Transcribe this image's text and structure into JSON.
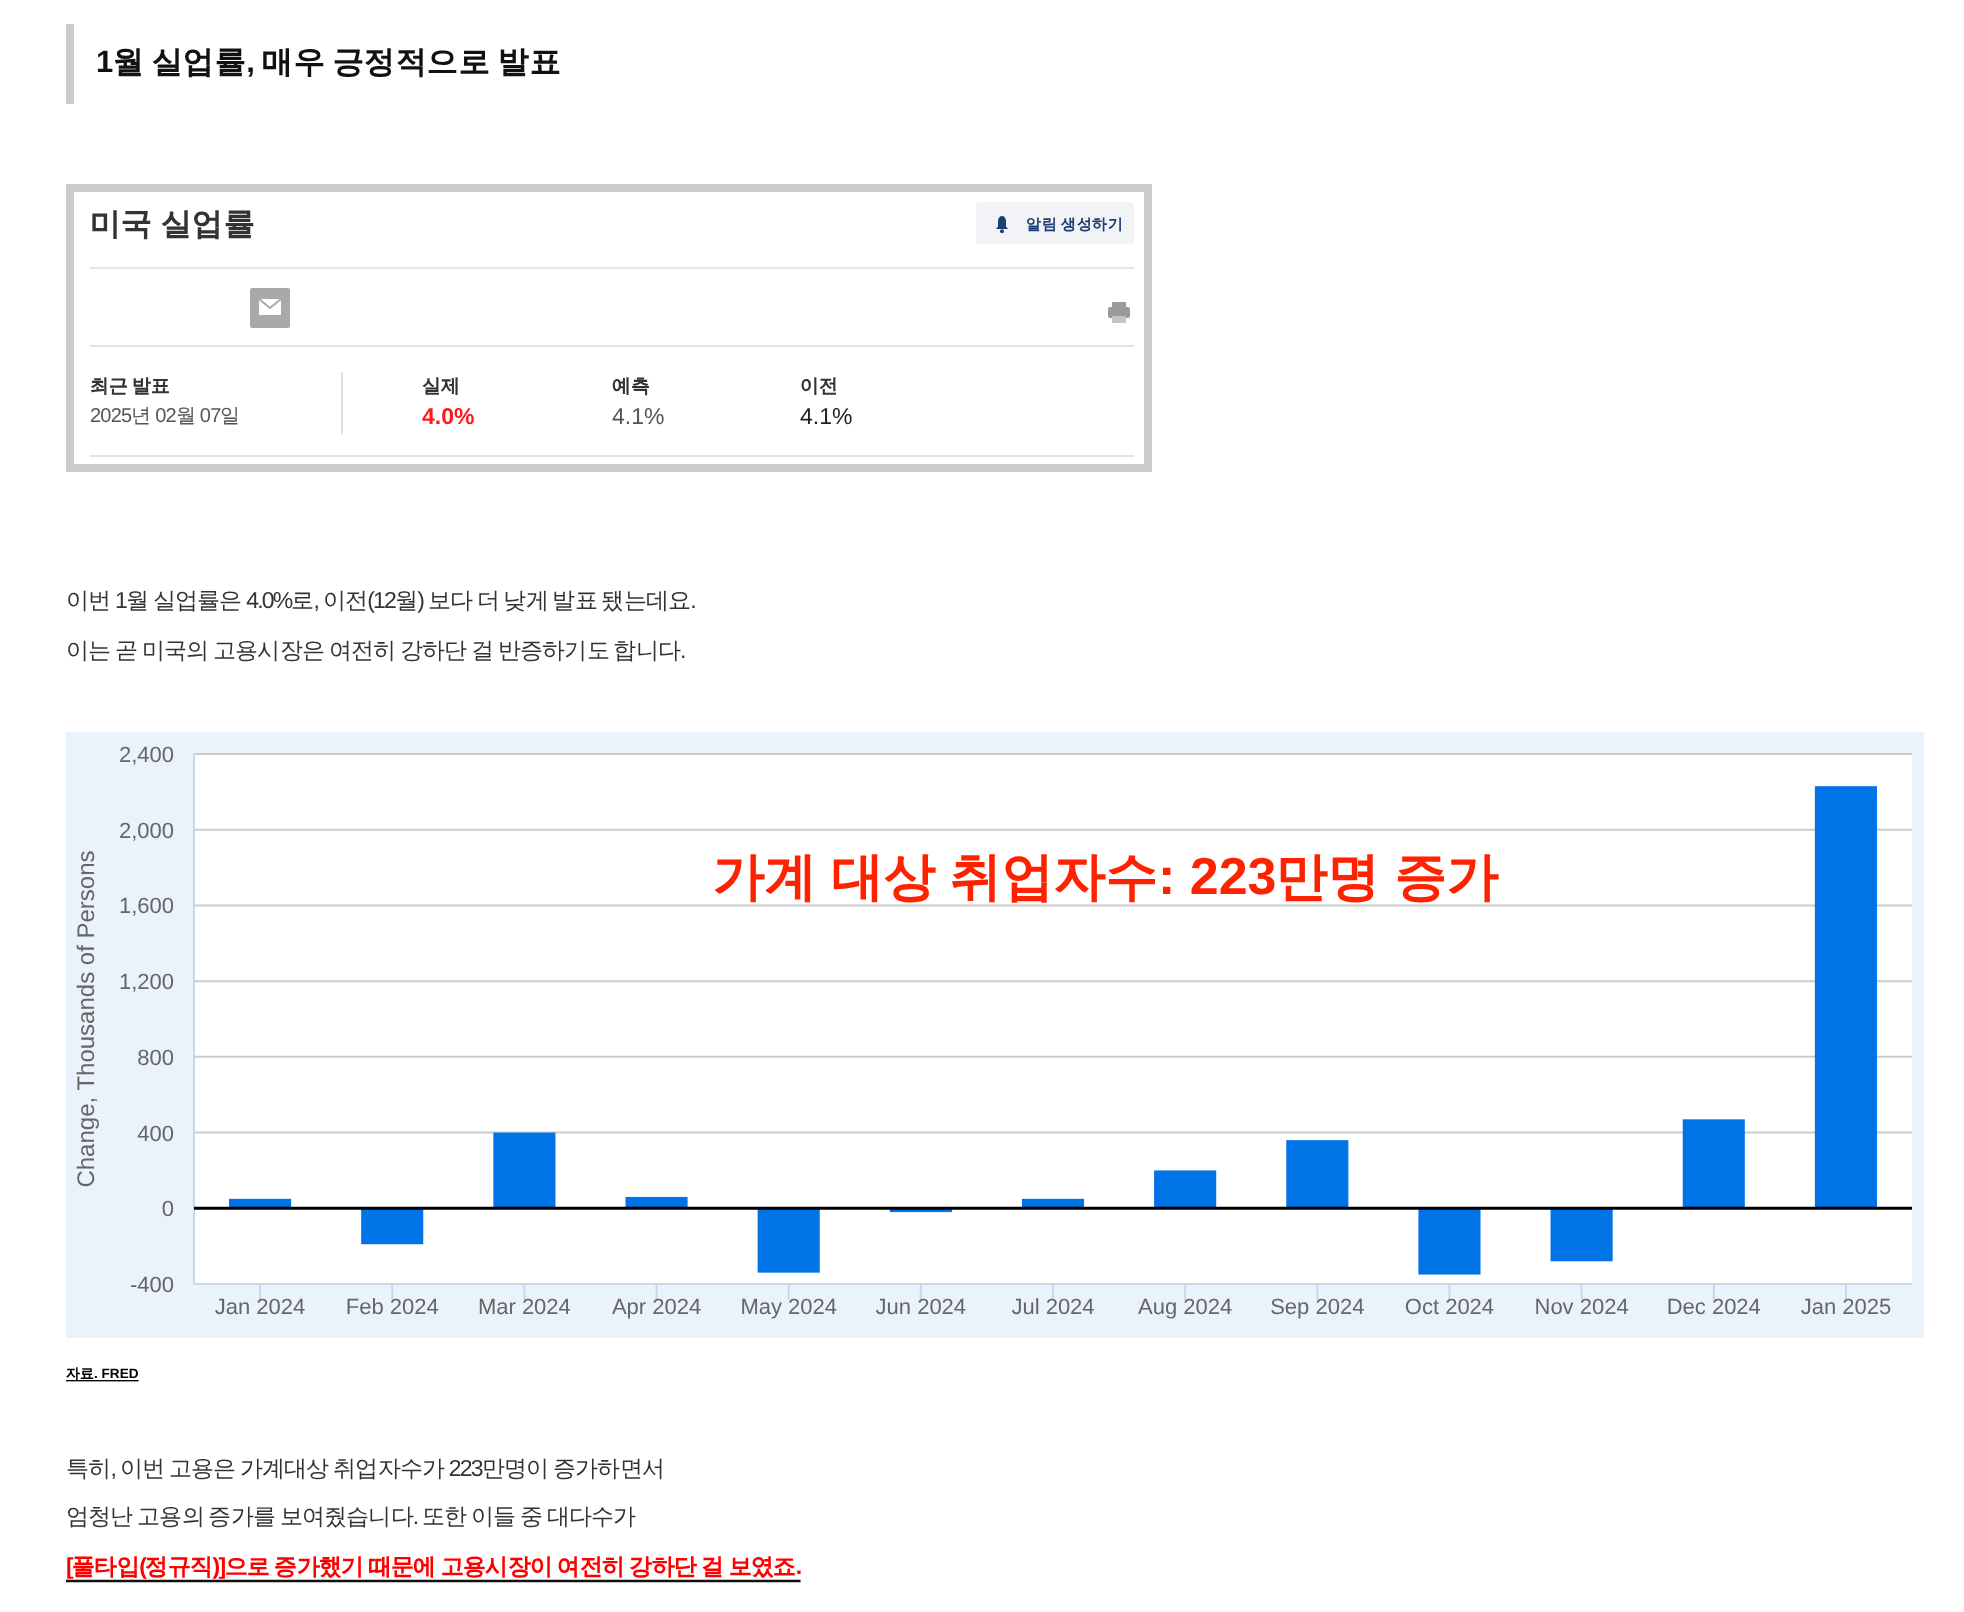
{
  "chart_data": [
    {
      "type": "other",
      "title": "1월 실업률, 매우 긍정적으로 발표",
      "subtitle": "미국 실업률",
      "annotations": [
        "알림 생성하기",
        "최근 발표",
        "2025년 02월 07일",
        "실제",
        "4.0%",
        "예측",
        "4.1%",
        "이전",
        "4.1%",
        "이번 1월 실업률은 4.0%로, 이전(12월) 보다 더 낮게 발표 됐는데요.",
        "이는 곧 미국의 고용시장은 여전히 강하단 걸 반증하기도 합니다."
      ]
    },
    {
      "type": "bar",
      "ylabel": "Change, Thousands of Persons",
      "categories": [
        "Jan 2024",
        "Feb 2024",
        "Mar 2024",
        "Apr 2024",
        "May 2024",
        "Jun 2024",
        "Jul 2024",
        "Aug 2024",
        "Sep 2024",
        "Oct 2024",
        "Nov 2024",
        "Dec 2024",
        "Jan 2025"
      ],
      "values": [
        50,
        -190,
        400,
        60,
        -340,
        -20,
        50,
        200,
        360,
        -350,
        -280,
        470,
        2230
      ],
      "color": "#0073e6",
      "ylim": [
        -400,
        2400
      ],
      "yticks": [
        -400,
        0,
        400,
        800,
        {
          "value": 1200,
          "label": "1,200"
        },
        {
          "value": 1600,
          "label": "1,600"
        },
        {
          "value": 2000,
          "label": "2,000"
        },
        {
          "value": 2400,
          "label": "2,400"
        }
      ],
      "grid": "y",
      "ref_lines": [
        {
          "axis": "y",
          "value": 0,
          "color": "#000000"
        }
      ],
      "annotations": [
        "가계 대상 취업자수: 223만명 증가",
        "자료. FRED",
        "특히, 이번 고용은 가계대상 취업자수가 223만명이 증가하면서",
        "엄청난 고용의 증가를 보여줬습니다. 또한 이들 중 대다수가",
        "[풀타입(정규직)]으로 증가했기 때문에 고용시장이 여전히 강하단 걸 보였죠."
      ]
    }
  ]
}
